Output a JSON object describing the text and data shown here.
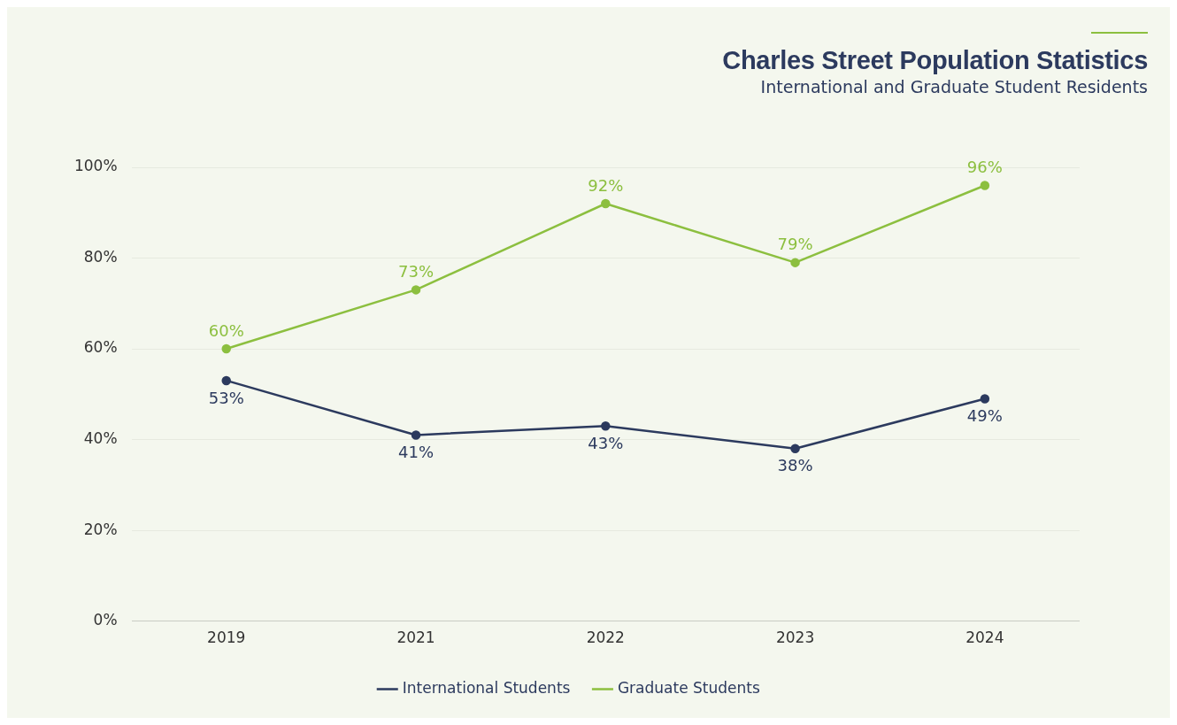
{
  "chart_data": {
    "type": "line",
    "title": "Charles Street Population Statistics",
    "subtitle": "International and Graduate Student Residents",
    "categories": [
      "2019",
      "2021",
      "2022",
      "2023",
      "2024"
    ],
    "series": [
      {
        "name": "International Students",
        "color": "#2c3a5e",
        "values": [
          53,
          41,
          43,
          38,
          49
        ],
        "value_labels": [
          "53%",
          "41%",
          "43%",
          "38%",
          "49%"
        ]
      },
      {
        "name": "Graduate Students",
        "color": "#8cbf3f",
        "values": [
          60,
          73,
          92,
          79,
          96
        ],
        "value_labels": [
          "60%",
          "73%",
          "92%",
          "79%",
          "96%"
        ]
      }
    ],
    "ylim": [
      0,
      100
    ],
    "yticks": [
      {
        "value": 0,
        "label": "0%"
      },
      {
        "value": 20,
        "label": "20%"
      },
      {
        "value": 40,
        "label": "40%"
      },
      {
        "value": 60,
        "label": "60%"
      },
      {
        "value": 80,
        "label": "80%"
      },
      {
        "value": 100,
        "label": "100%"
      }
    ],
    "grid": "y",
    "legend": "bottom",
    "marker": "circle",
    "line_style": "solid"
  }
}
